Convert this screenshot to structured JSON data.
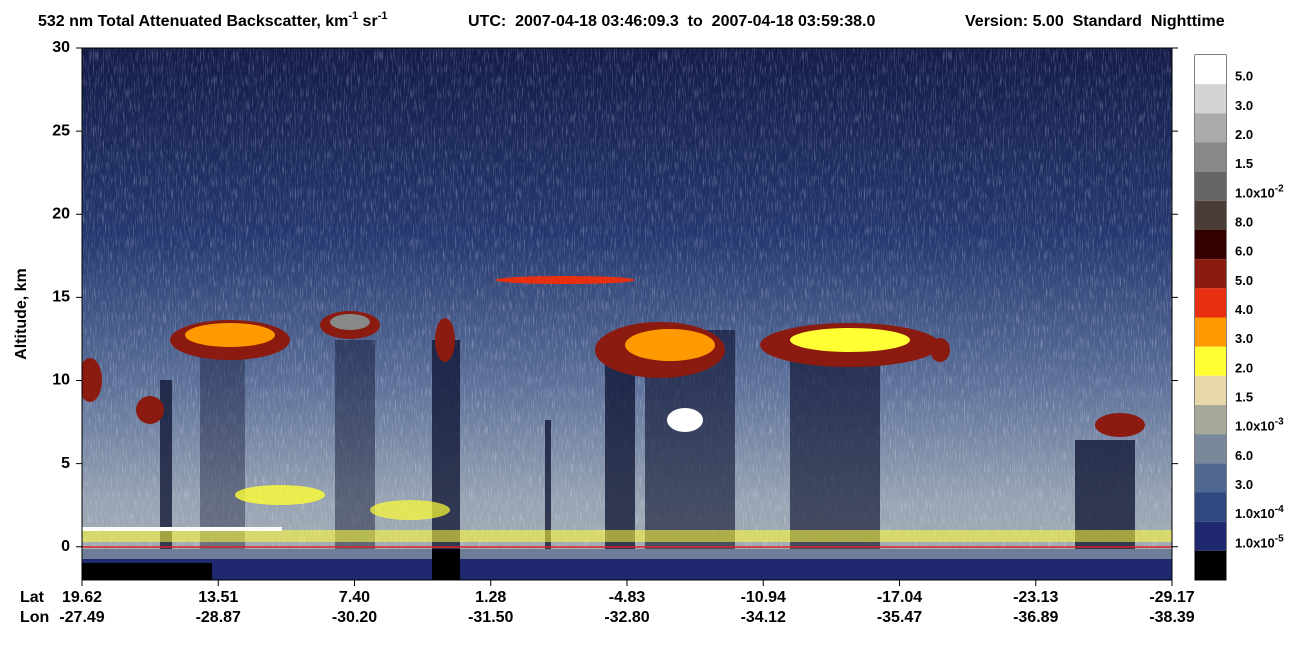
{
  "chart_data": {
    "type": "heatmap",
    "title_parts": [
      "532 nm Total Attenuated Backscatter, km",
      "-1",
      " sr",
      "-1"
    ],
    "subtitle": "UTC:  2007-04-18 03:46:09.3  to  2007-04-18 03:59:38.0",
    "version": "Version: 5.00  Standard  Nighttime",
    "ylabel": "Altitude, km",
    "ylim": [
      -2,
      30
    ],
    "yticks": [
      0,
      5,
      10,
      15,
      20,
      25,
      30
    ],
    "lat_title": "Lat",
    "lon_title": "Lon",
    "lat_labels": [
      "19.62",
      "13.51",
      "7.40",
      "1.28",
      "-4.83",
      "-10.94",
      "-17.04",
      "-23.13",
      "-29.17"
    ],
    "lon_labels": [
      "-27.49",
      "-28.87",
      "-30.20",
      "-31.50",
      "-32.80",
      "-34.12",
      "-35.47",
      "-36.89",
      "-38.39"
    ],
    "colorbar": {
      "colors": [
        "#ffffff",
        "#d4d4d4",
        "#ababab",
        "#888888",
        "#666666",
        "#4a3d38",
        "#330000",
        "#8b1a10",
        "#e83010",
        "#ff9900",
        "#ffff33",
        "#e8d8a8",
        "#a8a898",
        "#788898",
        "#506890",
        "#304880",
        "#202870",
        "#000000"
      ],
      "ticks": [
        {
          "text": "5.0"
        },
        {
          "text": "3.0"
        },
        {
          "text": "2.0"
        },
        {
          "text": "1.5"
        },
        {
          "text": "1.0x10",
          "sup": "-2"
        },
        {
          "text": "8.0"
        },
        {
          "text": "6.0"
        },
        {
          "text": "5.0"
        },
        {
          "text": "4.0"
        },
        {
          "text": "3.0"
        },
        {
          "text": "2.0"
        },
        {
          "text": "1.5"
        },
        {
          "text": "1.0x10",
          "sup": "-3"
        },
        {
          "text": "6.0"
        },
        {
          "text": "3.0"
        },
        {
          "text": "1.0x10",
          "sup": "-4"
        },
        {
          "text": "1.0x10",
          "sup": "-5"
        }
      ]
    }
  }
}
